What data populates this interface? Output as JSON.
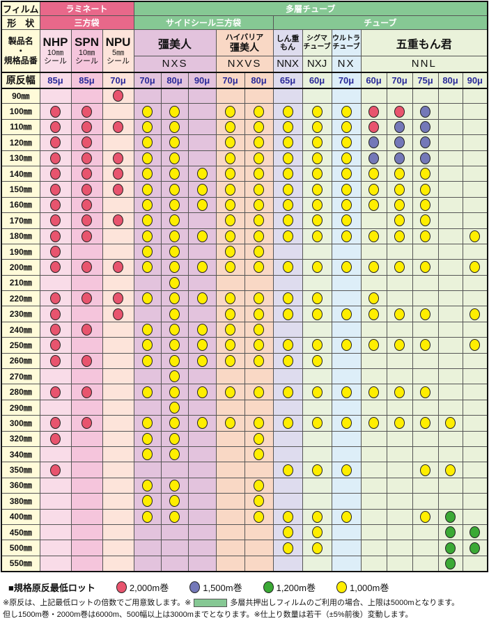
{
  "header": {
    "film_label": "フィルム",
    "shape_label": "形　状",
    "product_label_1": "製品名",
    "product_label_dot": "・",
    "product_label_2": "規格品番",
    "width_label": "原反幅",
    "laminate": "ラミネート",
    "sanpoubukuro": "三方袋",
    "multilayer_tube": "多層チューブ",
    "side_seal": "サイドシール三方袋",
    "tube": "チューブ",
    "products": [
      {
        "name": "NHP",
        "sub1": "10㎜",
        "sub2": "シール"
      },
      {
        "name": "SPN",
        "sub1": "10㎜",
        "sub2": "シール"
      },
      {
        "name": "NPU",
        "sub1": "5㎜",
        "sub2": "シール"
      },
      {
        "name": "彊美人",
        "code": "NXS"
      },
      {
        "name1": "ハイバリア",
        "name2": "彊美人",
        "code": "NXVS"
      },
      {
        "name1": "しん重",
        "name2": "もん",
        "code": "NNX"
      },
      {
        "name1": "シグマ",
        "name2": "チューブ",
        "code": "NXJ"
      },
      {
        "name1": "ウルトラ",
        "name2": "チューブ",
        "code": "NX"
      },
      {
        "name": "五重もん君",
        "code": "NNL"
      }
    ],
    "thickness": [
      "85μ",
      "85μ",
      "70μ",
      "70μ",
      "80μ",
      "90μ",
      "70μ",
      "80μ",
      "65μ",
      "60μ",
      "70μ",
      "60μ",
      "70μ",
      "75μ",
      "80μ",
      "90μ"
    ]
  },
  "colors": {
    "red": "#E8546E",
    "blue": "#7478B8",
    "green": "#3BA935",
    "yellow": "#FFEE00",
    "pink_header": "#E8688A",
    "green_header": "#86C894"
  },
  "rows": [
    {
      "width": "90㎜",
      "lots": "..r............."
    },
    {
      "width": "100㎜",
      "lots": "rr.yy.yyyyyrrb.."
    },
    {
      "width": "110㎜",
      "lots": "rrryy.yyyyyrbb.."
    },
    {
      "width": "120㎜",
      "lots": "rr.yy.yyyyybbb.."
    },
    {
      "width": "130㎜",
      "lots": "rrryy.yyyyybbb.."
    },
    {
      "width": "140㎜",
      "lots": "rrryyyyyyyyyyy.."
    },
    {
      "width": "150㎜",
      "lots": "rrryyyyyyyyyyy.."
    },
    {
      "width": "160㎜",
      "lots": "rr.yyyyyyyyyyy.."
    },
    {
      "width": "170㎜",
      "lots": "rrryy.yyyyy.yy.."
    },
    {
      "width": "180㎜",
      "lots": "rr.yyyyyyyyyyy.y"
    },
    {
      "width": "190㎜",
      "lots": "r..yy.yy........"
    },
    {
      "width": "200㎜",
      "lots": "rrryyyyyyyyyyy.y"
    },
    {
      "width": "210㎜",
      "lots": "....y..........."
    },
    {
      "width": "220㎜",
      "lots": "rrryyyyyyy.y...."
    },
    {
      "width": "230㎜",
      "lots": "r.r.y.yyyyyyyy.y"
    },
    {
      "width": "240㎜",
      "lots": "rr.yyyyy........"
    },
    {
      "width": "250㎜",
      "lots": "r..yyyyyyyyyyy.y"
    },
    {
      "width": "260㎜",
      "lots": "rr.yyyyyyy......"
    },
    {
      "width": "270㎜",
      "lots": "....y..........."
    },
    {
      "width": "280㎜",
      "lots": "rr.yyyyyyyyyyy.."
    },
    {
      "width": "290㎜",
      "lots": "....y..........."
    },
    {
      "width": "300㎜",
      "lots": "rr.yyyyyyyyyyyy."
    },
    {
      "width": "320㎜",
      "lots": "r..yy..y........"
    },
    {
      "width": "340㎜",
      "lots": "...yy..y........"
    },
    {
      "width": "350㎜",
      "lots": "r.......yyy..yy."
    },
    {
      "width": "360㎜",
      "lots": "...yy..y........"
    },
    {
      "width": "380㎜",
      "lots": "...yy..y........"
    },
    {
      "width": "400㎜",
      "lots": "...yy..yyyy..yg."
    },
    {
      "width": "450㎜",
      "lots": "........yy....gg"
    },
    {
      "width": "500㎜",
      "lots": "........yy....gg"
    },
    {
      "width": "550㎜",
      "lots": "..............g."
    }
  ],
  "legend": {
    "title": "■規格原反最低ロット",
    "items": [
      {
        "color": "red",
        "label": "2,000m巻"
      },
      {
        "color": "blue",
        "label": "1,500m巻"
      },
      {
        "color": "green",
        "label": "1,200m巻"
      },
      {
        "color": "yellow",
        "label": "1,000m巻"
      }
    ]
  },
  "notes": {
    "line1_a": "※原反は、上記最低ロットの倍数でご用意致します。※",
    "line1_b": "多層共押出しフィルムのご利用の場合、上限は5000mとなります。",
    "line2": "但し1500m巻・2000m巻は6000m、500幅以上は3000mまでとなります。※仕上り数量は若干（±5%前後）変動します。"
  }
}
